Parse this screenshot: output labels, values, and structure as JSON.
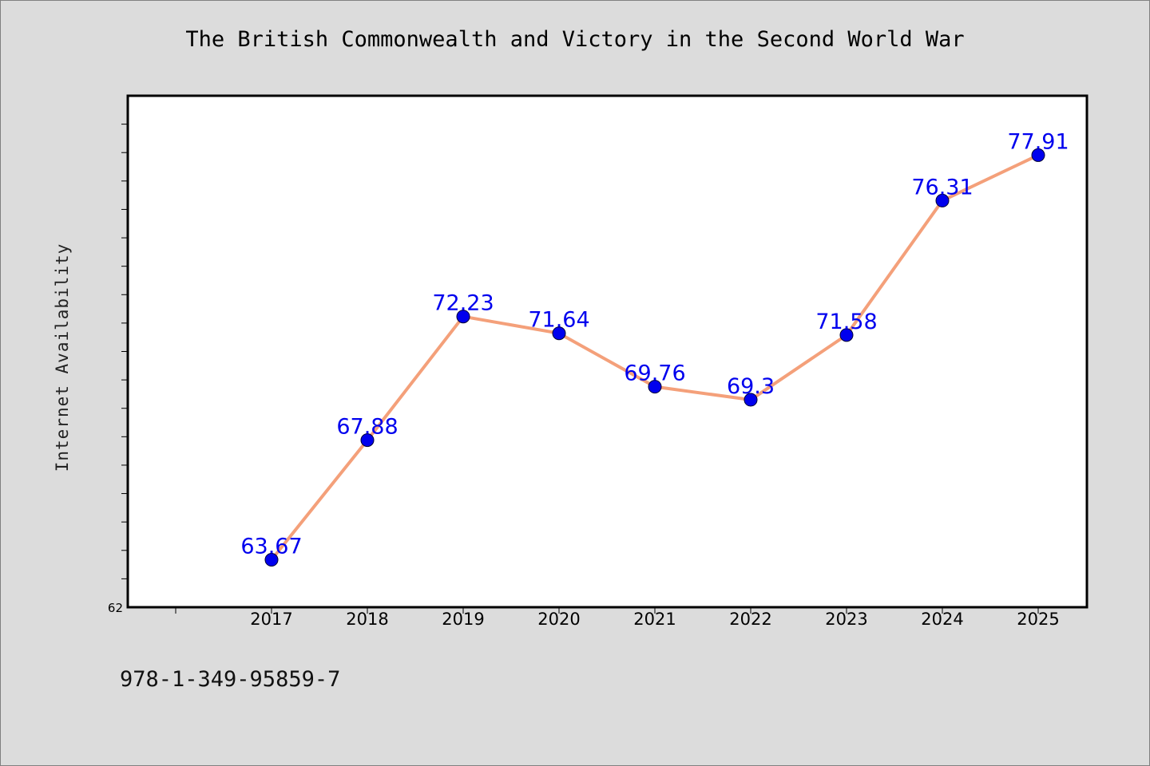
{
  "chart_data": {
    "type": "line",
    "title": "The British Commonwealth and Victory in the Second World War",
    "xlabel": "",
    "ylabel": "Internet Availability",
    "categories": [
      "2017",
      "2018",
      "2019",
      "2020",
      "2021",
      "2022",
      "2023",
      "2024",
      "2025"
    ],
    "series": [
      {
        "values": [
          63.67,
          67.88,
          72.23,
          71.64,
          69.76,
          69.3,
          71.58,
          76.31,
          77.91
        ],
        "data_labels": [
          "63.67",
          "67.88",
          "72.23",
          "71.64",
          "69.76",
          "69.3",
          "71.58",
          "76.31",
          "77.91"
        ],
        "line_color": "#f4a07a",
        "marker_color": "#0000ee"
      }
    ],
    "ylim": [
      62,
      80
    ],
    "y_tick_labels": [
      "62"
    ],
    "label_color": "#0000ee",
    "grid": false,
    "legend": "none"
  },
  "footer": {
    "code": "978-1-349-95859-7"
  }
}
